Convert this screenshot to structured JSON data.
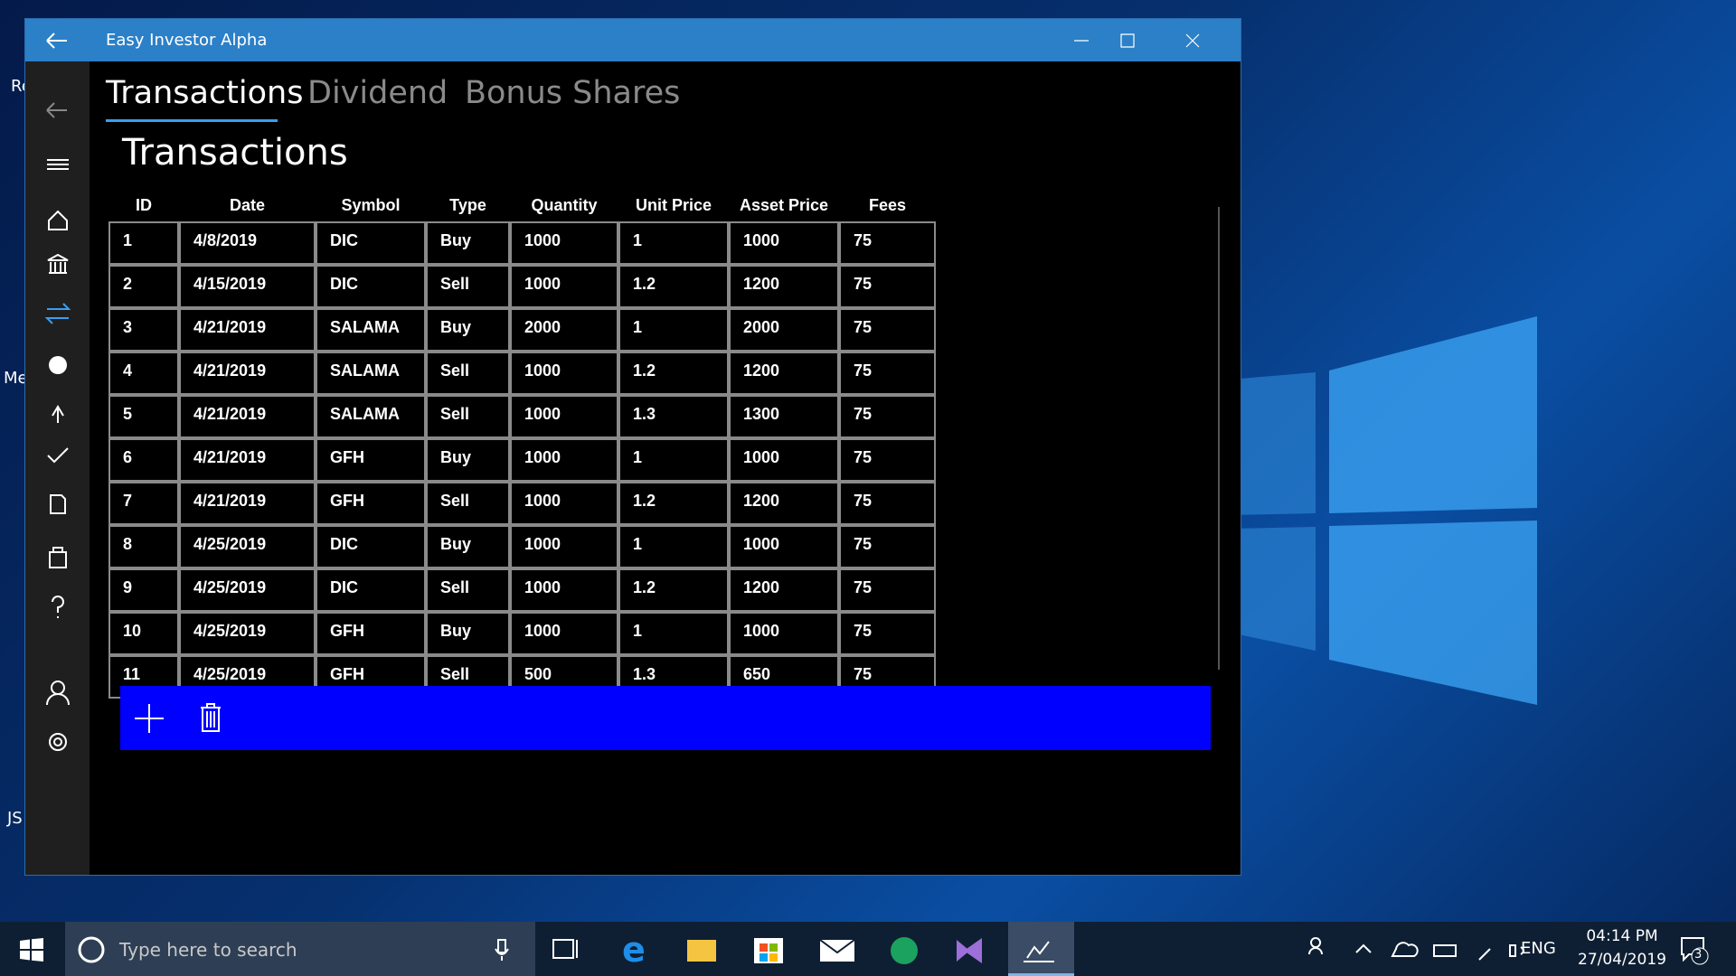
{
  "window": {
    "title": "Easy Investor Alpha"
  },
  "tabs": [
    "Transactions",
    "Dividend",
    "Bonus Shares"
  ],
  "heading": "Transactions",
  "table": {
    "columns": [
      "ID",
      "Date",
      "Symbol",
      "Type",
      "Quantity",
      "Unit Price",
      "Asset Price",
      "Fees"
    ],
    "rows": [
      [
        "1",
        "4/8/2019",
        "DIC",
        "Buy",
        "1000",
        "1",
        "1000",
        "75"
      ],
      [
        "2",
        "4/15/2019",
        "DIC",
        "Sell",
        "1000",
        "1.2",
        "1200",
        "75"
      ],
      [
        "3",
        "4/21/2019",
        "SALAMA",
        "Buy",
        "2000",
        "1",
        "2000",
        "75"
      ],
      [
        "4",
        "4/21/2019",
        "SALAMA",
        "Sell",
        "1000",
        "1.2",
        "1200",
        "75"
      ],
      [
        "5",
        "4/21/2019",
        "SALAMA",
        "Sell",
        "1000",
        "1.3",
        "1300",
        "75"
      ],
      [
        "6",
        "4/21/2019",
        "GFH",
        "Buy",
        "1000",
        "1",
        "1000",
        "75"
      ],
      [
        "7",
        "4/21/2019",
        "GFH",
        "Sell",
        "1000",
        "1.2",
        "1200",
        "75"
      ],
      [
        "8",
        "4/25/2019",
        "DIC",
        "Buy",
        "1000",
        "1",
        "1000",
        "75"
      ],
      [
        "9",
        "4/25/2019",
        "DIC",
        "Sell",
        "1000",
        "1.2",
        "1200",
        "75"
      ],
      [
        "10",
        "4/25/2019",
        "GFH",
        "Buy",
        "1000",
        "1",
        "1000",
        "75"
      ],
      [
        "11",
        "4/25/2019",
        "GFH",
        "Sell",
        "500",
        "1.3",
        "650",
        "75"
      ]
    ]
  },
  "desktop_labels": [
    "Re",
    "Me",
    "JS"
  ],
  "taskbar": {
    "search": "Type here to search",
    "language": "ENG",
    "time": "04:14 PM",
    "date": "27/04/2019",
    "notifications": "3"
  }
}
